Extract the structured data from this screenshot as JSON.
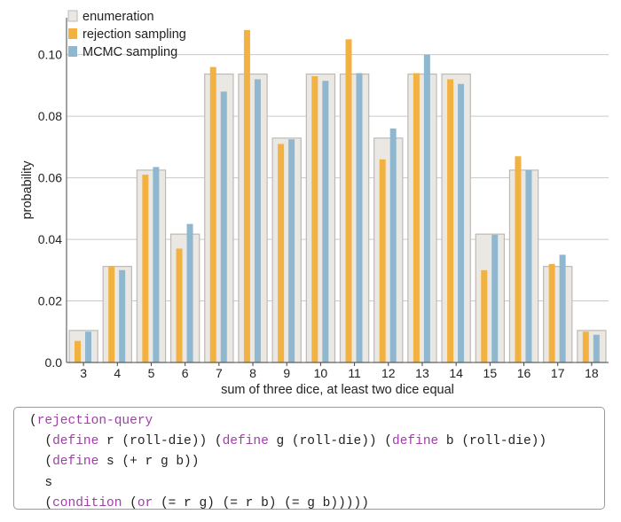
{
  "chart_data": {
    "type": "bar",
    "xlabel": "sum of three dice, at least two dice equal",
    "ylabel": "probability",
    "categories": [
      "3",
      "4",
      "5",
      "6",
      "7",
      "8",
      "9",
      "10",
      "11",
      "12",
      "13",
      "14",
      "15",
      "16",
      "17",
      "18"
    ],
    "ylim": [
      0,
      0.112
    ],
    "yticks": [
      "0.0",
      "0.02",
      "0.04",
      "0.06",
      "0.08",
      "0.10"
    ],
    "grid": true,
    "legend_position": "top-left",
    "series": [
      {
        "name": "enumeration",
        "color": "#ebe8e4",
        "stroke": "#bdbab6",
        "values": [
          0.0104,
          0.0312,
          0.0625,
          0.0417,
          0.0937,
          0.0937,
          0.0729,
          0.0937,
          0.0937,
          0.0729,
          0.0937,
          0.0937,
          0.0417,
          0.0625,
          0.0312,
          0.0104
        ]
      },
      {
        "name": "rejection sampling",
        "color": "#f2b241",
        "values": [
          0.007,
          0.0312,
          0.061,
          0.037,
          0.096,
          0.108,
          0.071,
          0.093,
          0.105,
          0.066,
          0.094,
          0.092,
          0.03,
          0.067,
          0.032,
          0.01
        ]
      },
      {
        "name": "MCMC sampling",
        "color": "#8fb7cf",
        "values": [
          0.01,
          0.03,
          0.0635,
          0.045,
          0.088,
          0.092,
          0.0725,
          0.0915,
          0.094,
          0.076,
          0.1,
          0.0905,
          0.0415,
          0.0625,
          0.035,
          0.009
        ]
      }
    ]
  },
  "code": {
    "lines": [
      [
        {
          "t": "(",
          "k": false
        },
        {
          "t": "rejection-query",
          "k": true
        }
      ],
      [
        {
          "t": "  (",
          "k": false
        },
        {
          "t": "define",
          "k": true
        },
        {
          "t": " r (roll-die)) (",
          "k": false
        },
        {
          "t": "define",
          "k": true
        },
        {
          "t": " g (roll-die)) (",
          "k": false
        },
        {
          "t": "define",
          "k": true
        },
        {
          "t": " b (roll-die))",
          "k": false
        }
      ],
      [
        {
          "t": "  (",
          "k": false
        },
        {
          "t": "define",
          "k": true
        },
        {
          "t": " s (+ r g b))",
          "k": false
        }
      ],
      [
        {
          "t": "  s",
          "k": false
        }
      ],
      [
        {
          "t": "  (",
          "k": false
        },
        {
          "t": "condition",
          "k": true
        },
        {
          "t": " (",
          "k": false
        },
        {
          "t": "or",
          "k": true
        },
        {
          "t": " (= r g) (= r b) (= g b)))))",
          "k": false
        }
      ]
    ]
  }
}
